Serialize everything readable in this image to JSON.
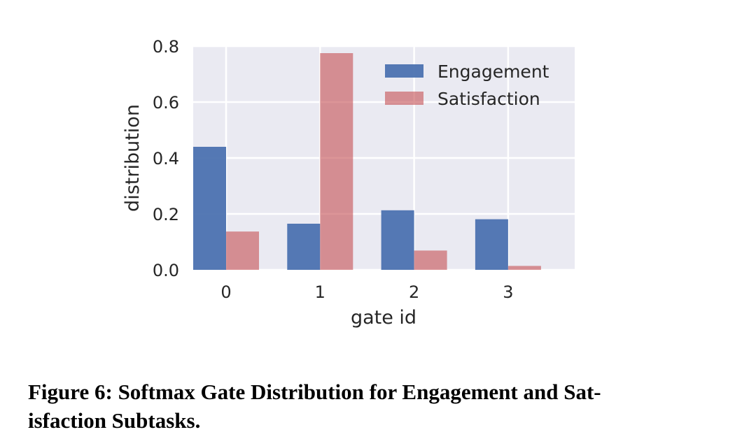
{
  "chart_data": {
    "type": "bar",
    "categories": [
      "0",
      "1",
      "2",
      "3"
    ],
    "series": [
      {
        "name": "Engagement",
        "values": [
          0.44,
          0.165,
          0.213,
          0.181
        ],
        "color": "#4c72b0"
      },
      {
        "name": "Satisfaction",
        "values": [
          0.137,
          0.775,
          0.069,
          0.014
        ],
        "color": "#c44e52"
      }
    ],
    "xlabel": "gate id",
    "ylabel": "distribution",
    "ylim": [
      0,
      0.8
    ],
    "yticks": [
      "0.0",
      "0.2",
      "0.4",
      "0.6",
      "0.8"
    ],
    "ytick_values": [
      0,
      0.2,
      0.4,
      0.6,
      0.8
    ],
    "grid": true,
    "legend_position": "top-right",
    "background": "#eaeaf2"
  },
  "caption": {
    "line1": "Figure 6: Softmax Gate Distribution for Engagement and Sat-",
    "line2": "isfaction Subtasks."
  }
}
